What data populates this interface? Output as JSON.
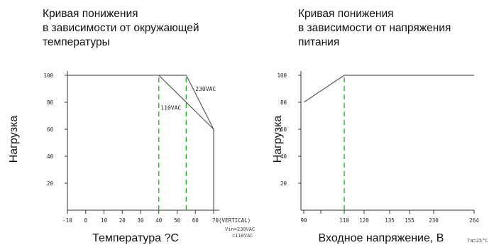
{
  "chart_data": [
    {
      "type": "line",
      "title_lines": [
        "Кривая понижения",
        "в зависимости от окружающей",
        "температуры"
      ],
      "xlabel": "Температура ?С",
      "ylabel": "Нагрузка",
      "xlim": [
        -10,
        70
      ],
      "ylim": [
        0,
        100
      ],
      "x_ticks": [
        -10,
        0,
        10,
        20,
        30,
        40,
        50,
        60,
        70
      ],
      "x_tick_labels": [
        "-10",
        "0",
        "10",
        "20",
        "30",
        "40",
        "50",
        "60",
        "70(VERTICAL)"
      ],
      "y_ticks": [
        20,
        40,
        60,
        80,
        100
      ],
      "y_tick_labels": [
        "20",
        "40",
        "60",
        "80",
        "100"
      ],
      "series": [
        {
          "name": "230VAC",
          "x": [
            -10,
            55,
            70,
            70
          ],
          "y": [
            100,
            100,
            60,
            0
          ]
        },
        {
          "name": "110VAC",
          "x": [
            40,
            70
          ],
          "y": [
            100,
            60
          ]
        }
      ],
      "guides": [
        {
          "x": 40,
          "y_from": 0,
          "y_to": 100
        },
        {
          "x": 55,
          "y_from": 0,
          "y_to": 100
        }
      ],
      "annotations": [
        {
          "text": "230VAC",
          "x": 60,
          "y": 90
        },
        {
          "text": "110VAC",
          "x": 41,
          "y": 76
        }
      ],
      "notes": [
        "Vin=230VAC",
        "=110VAC"
      ],
      "grid": false
    },
    {
      "type": "line",
      "title_lines": [
        "Кривая понижения",
        "в зависимости от напряжения",
        "питания"
      ],
      "xlabel": "Входное напряжение, В",
      "xlabel_note": "Ta=25°C",
      "ylabel": "Нагрузка",
      "x_ticks": [
        "90",
        "100",
        "110",
        "120",
        "135",
        "155",
        "230",
        "264"
      ],
      "x_tick_labels": [
        "90",
        "",
        "",
        "",
        "",
        "",
        "",
        ""
      ],
      "x_tick_labels_lower": [
        "90",
        "",
        "110",
        "120",
        "135",
        "155",
        "230",
        "264"
      ],
      "ylim": [
        0,
        100
      ],
      "y_ticks": [
        20,
        40,
        60,
        80,
        100
      ],
      "y_tick_labels": [
        "20",
        "40",
        "60",
        "80",
        "100"
      ],
      "series": [
        {
          "name": "",
          "x": [
            "90",
            "110",
            "264"
          ],
          "y": [
            80,
            100,
            100
          ]
        }
      ],
      "guides": [
        {
          "x": "110",
          "y_from": 0,
          "y_to": 100
        }
      ],
      "grid": false
    }
  ]
}
